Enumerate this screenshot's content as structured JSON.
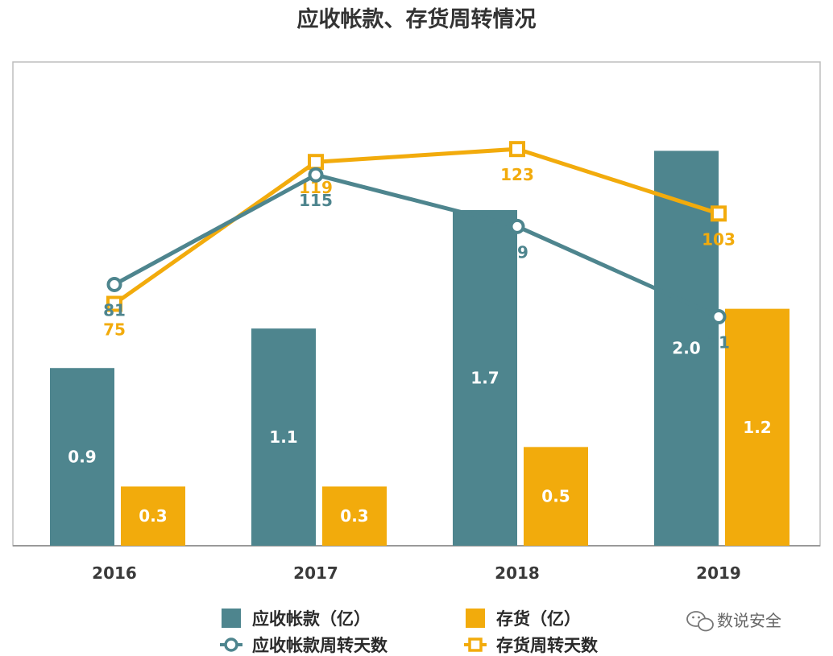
{
  "colors": {
    "teal": "#4e858e",
    "gold": "#f2ab0c",
    "axis": "#9a9a9a",
    "frame": "#bdbdbd"
  },
  "chart_data": {
    "type": "bar",
    "title": "应收帐款、存货周转情况",
    "categories": [
      "2016",
      "2017",
      "2018",
      "2019"
    ],
    "series": [
      {
        "name": "应收帐款（亿）",
        "kind": "bar",
        "color": "#4e858e",
        "values": [
          0.9,
          1.1,
          1.7,
          2.0
        ]
      },
      {
        "name": "存货（亿）",
        "kind": "bar",
        "color": "#f2ab0c",
        "values": [
          0.3,
          0.3,
          0.5,
          1.2
        ]
      },
      {
        "name": "应收帐款周转天数",
        "kind": "line",
        "marker": "circle",
        "color": "#4e858e",
        "values": [
          81,
          115,
          99,
          71
        ]
      },
      {
        "name": "存货周转天数",
        "kind": "line",
        "marker": "square",
        "color": "#f2ab0c",
        "values": [
          75,
          119,
          123,
          103
        ]
      }
    ],
    "bar_ylim": [
      0,
      2.45
    ],
    "line_ylim": [
      0,
      150
    ],
    "grid": false,
    "legend_position": "bottom"
  },
  "watermark": {
    "icon": "wechat-icon",
    "text": "数说安全"
  }
}
